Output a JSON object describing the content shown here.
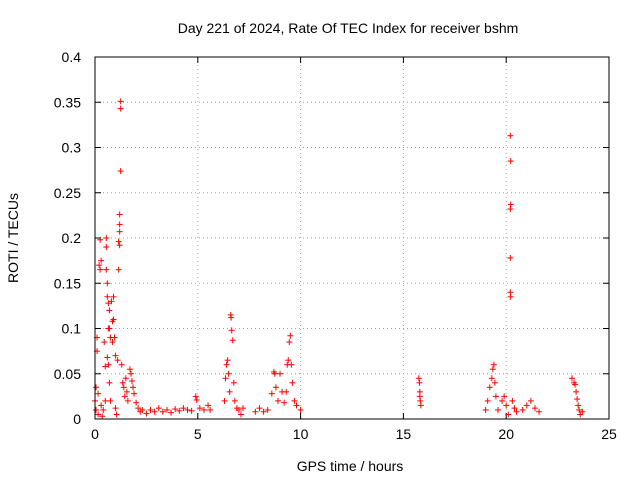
{
  "chart_data": {
    "type": "scatter",
    "title": "Day 221 of 2024, Rate Of TEC Index for receiver bshm",
    "xlabel": "GPS time / hours",
    "ylabel": "ROTI / TECUs",
    "xlim": [
      0,
      25
    ],
    "ylim": [
      0,
      0.4
    ],
    "grid": true,
    "x_ticks": [
      0,
      5,
      10,
      15,
      20,
      25
    ],
    "y_ticks": [
      0,
      0.05,
      0.1,
      0.15,
      0.2,
      0.25,
      0.3,
      0.35,
      0.4
    ],
    "x_tick_labels": [
      "0",
      "5",
      "10",
      "15",
      "20",
      "25"
    ],
    "y_tick_labels": [
      "0",
      "0.05",
      "0.1",
      "0.15",
      "0.2",
      "0.25",
      "0.3",
      "0.35",
      "0.4"
    ],
    "marker": "+",
    "color": "#ff0000",
    "series": [
      {
        "points": [
          [
            0.0,
            0.02
          ],
          [
            0.05,
            0.035
          ],
          [
            0.05,
            0.01
          ],
          [
            0.1,
            0.09
          ],
          [
            0.1,
            0.075
          ],
          [
            0.15,
            0.028
          ],
          [
            0.15,
            0.005
          ],
          [
            0.2,
            0.17
          ],
          [
            0.25,
            0.165
          ],
          [
            0.25,
            0.198
          ],
          [
            0.3,
            0.175
          ],
          [
            0.3,
            0.015
          ],
          [
            0.35,
            0.003
          ],
          [
            0.4,
            0.01
          ],
          [
            0.45,
            0.085
          ],
          [
            0.5,
            0.058
          ],
          [
            0.5,
            0.02
          ],
          [
            0.55,
            0.2
          ],
          [
            0.55,
            0.19
          ],
          [
            0.55,
            0.165
          ],
          [
            0.6,
            0.15
          ],
          [
            0.6,
            0.135
          ],
          [
            0.6,
            0.068
          ],
          [
            0.65,
            0.128
          ],
          [
            0.65,
            0.1
          ],
          [
            0.65,
            0.06
          ],
          [
            0.7,
            0.12
          ],
          [
            0.7,
            0.1
          ],
          [
            0.7,
            0.04
          ],
          [
            0.75,
            0.09
          ],
          [
            0.75,
            0.02
          ],
          [
            0.8,
            0.13
          ],
          [
            0.85,
            0.108
          ],
          [
            0.85,
            0.085
          ],
          [
            0.9,
            0.135
          ],
          [
            0.9,
            0.11
          ],
          [
            0.95,
            0.09
          ],
          [
            1.0,
            0.07
          ],
          [
            1.0,
            0.012
          ],
          [
            1.05,
            0.005
          ],
          [
            1.1,
            0.065
          ],
          [
            1.15,
            0.196
          ],
          [
            1.15,
            0.165
          ],
          [
            1.2,
            0.226
          ],
          [
            1.2,
            0.215
          ],
          [
            1.2,
            0.207
          ],
          [
            1.2,
            0.192
          ],
          [
            1.25,
            0.351
          ],
          [
            1.25,
            0.343
          ],
          [
            1.25,
            0.274
          ],
          [
            1.3,
            0.06
          ],
          [
            1.35,
            0.04
          ],
          [
            1.4,
            0.035
          ],
          [
            1.45,
            0.025
          ],
          [
            1.5,
            0.045
          ],
          [
            1.55,
            0.03
          ],
          [
            1.6,
            0.02
          ],
          [
            1.7,
            0.055
          ],
          [
            1.75,
            0.05
          ],
          [
            1.8,
            0.042
          ],
          [
            1.85,
            0.035
          ],
          [
            1.9,
            0.028
          ],
          [
            2.0,
            0.018
          ],
          [
            2.1,
            0.012
          ],
          [
            2.2,
            0.008
          ],
          [
            2.3,
            0.01
          ],
          [
            2.5,
            0.006
          ],
          [
            2.7,
            0.01
          ],
          [
            2.9,
            0.008
          ],
          [
            3.1,
            0.012
          ],
          [
            3.3,
            0.008
          ],
          [
            3.5,
            0.01
          ],
          [
            3.7,
            0.007
          ],
          [
            3.9,
            0.011
          ],
          [
            4.1,
            0.009
          ],
          [
            4.3,
            0.012
          ],
          [
            4.5,
            0.01
          ],
          [
            4.7,
            0.009
          ],
          [
            4.9,
            0.025
          ],
          [
            4.95,
            0.021
          ],
          [
            5.1,
            0.012
          ],
          [
            5.3,
            0.01
          ],
          [
            5.5,
            0.015
          ],
          [
            5.6,
            0.01
          ],
          [
            6.3,
            0.02
          ],
          [
            6.35,
            0.045
          ],
          [
            6.4,
            0.06
          ],
          [
            6.45,
            0.065
          ],
          [
            6.5,
            0.05
          ],
          [
            6.55,
            0.03
          ],
          [
            6.6,
            0.115
          ],
          [
            6.62,
            0.112
          ],
          [
            6.65,
            0.098
          ],
          [
            6.7,
            0.087
          ],
          [
            6.75,
            0.04
          ],
          [
            6.8,
            0.02
          ],
          [
            6.9,
            0.012
          ],
          [
            7.0,
            0.01
          ],
          [
            7.1,
            0.005
          ],
          [
            7.2,
            0.012
          ],
          [
            7.8,
            0.008
          ],
          [
            8.0,
            0.012
          ],
          [
            8.2,
            0.008
          ],
          [
            8.4,
            0.01
          ],
          [
            8.6,
            0.028
          ],
          [
            8.7,
            0.052
          ],
          [
            8.75,
            0.05
          ],
          [
            8.8,
            0.035
          ],
          [
            8.9,
            0.02
          ],
          [
            9.0,
            0.05
          ],
          [
            9.1,
            0.03
          ],
          [
            9.2,
            0.018
          ],
          [
            9.3,
            0.03
          ],
          [
            9.35,
            0.06
          ],
          [
            9.4,
            0.065
          ],
          [
            9.45,
            0.085
          ],
          [
            9.5,
            0.092
          ],
          [
            9.55,
            0.06
          ],
          [
            9.6,
            0.04
          ],
          [
            9.7,
            0.02
          ],
          [
            9.8,
            0.015
          ],
          [
            10.0,
            0.01
          ],
          [
            15.75,
            0.045
          ],
          [
            15.78,
            0.04
          ],
          [
            15.8,
            0.03
          ],
          [
            15.8,
            0.025
          ],
          [
            15.82,
            0.02
          ],
          [
            15.85,
            0.015
          ],
          [
            19.0,
            0.01
          ],
          [
            19.1,
            0.02
          ],
          [
            19.2,
            0.035
          ],
          [
            19.3,
            0.045
          ],
          [
            19.35,
            0.055
          ],
          [
            19.4,
            0.06
          ],
          [
            19.45,
            0.04
          ],
          [
            19.5,
            0.025
          ],
          [
            19.6,
            0.01
          ],
          [
            19.8,
            0.02
          ],
          [
            19.9,
            0.025
          ],
          [
            20.0,
            0.015
          ],
          [
            20.1,
            0.005
          ],
          [
            20.2,
            0.313
          ],
          [
            20.22,
            0.285
          ],
          [
            20.22,
            0.237
          ],
          [
            20.2,
            0.232
          ],
          [
            20.2,
            0.178
          ],
          [
            20.2,
            0.14
          ],
          [
            20.22,
            0.135
          ],
          [
            20.3,
            0.02
          ],
          [
            20.4,
            0.012
          ],
          [
            20.5,
            0.008
          ],
          [
            20.8,
            0.01
          ],
          [
            21.0,
            0.015
          ],
          [
            21.2,
            0.02
          ],
          [
            21.4,
            0.012
          ],
          [
            21.6,
            0.008
          ],
          [
            23.2,
            0.045
          ],
          [
            23.3,
            0.04
          ],
          [
            23.35,
            0.038
          ],
          [
            23.4,
            0.03
          ],
          [
            23.45,
            0.022
          ],
          [
            23.5,
            0.015
          ],
          [
            23.55,
            0.01
          ],
          [
            23.6,
            0.005
          ],
          [
            23.7,
            0.008
          ]
        ]
      }
    ]
  }
}
